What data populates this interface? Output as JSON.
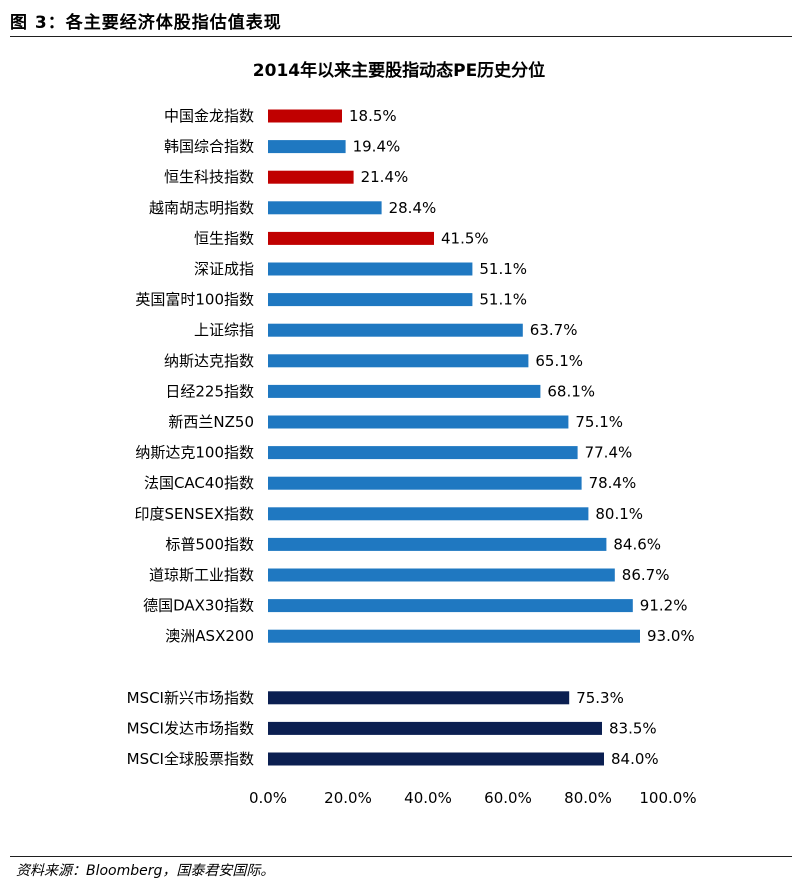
{
  "figure": {
    "title": "图 3：各主要经济体股指估值表现",
    "source": "资料来源：Bloomberg，国泰君安国际。"
  },
  "colors": {
    "red": "#C00000",
    "blue": "#1F78C1",
    "navy": "#0B1F51"
  },
  "chart_data": {
    "type": "bar",
    "orientation": "horizontal",
    "title": "2014年以来主要股指动态PE历史分位",
    "xlim": [
      0,
      100
    ],
    "xticks": [
      "0.0%",
      "20.0%",
      "40.0%",
      "60.0%",
      "80.0%",
      "100.0%"
    ],
    "grid": false,
    "categories": [
      "中国金龙指数",
      "韩国综合指数",
      "恒生科技指数",
      "越南胡志明指数",
      "恒生指数",
      "深证成指",
      "英国富时100指数",
      "上证综指",
      "纳斯达克指数",
      "日经225指数",
      "新西兰NZ50",
      "纳斯达克100指数",
      "法国CAC40指数",
      "印度SENSEX指数",
      "标普500指数",
      "道琼斯工业指数",
      "德国DAX30指数",
      "澳洲ASX200",
      "MSCI新兴市场指数",
      "MSCI发达市场指数",
      "MSCI全球股票指数"
    ],
    "values": [
      18.5,
      19.4,
      21.4,
      28.4,
      41.5,
      51.1,
      51.1,
      63.7,
      65.1,
      68.1,
      75.1,
      77.4,
      78.4,
      80.1,
      84.6,
      86.7,
      91.2,
      93.0,
      75.3,
      83.5,
      84.0
    ],
    "value_labels": [
      "18.5%",
      "19.4%",
      "21.4%",
      "28.4%",
      "41.5%",
      "51.1%",
      "51.1%",
      "63.7%",
      "65.1%",
      "68.1%",
      "75.1%",
      "77.4%",
      "78.4%",
      "80.1%",
      "84.6%",
      "86.7%",
      "91.2%",
      "93.0%",
      "75.3%",
      "83.5%",
      "84.0%"
    ],
    "bar_colors": [
      "red",
      "blue",
      "red",
      "blue",
      "red",
      "blue",
      "blue",
      "blue",
      "blue",
      "blue",
      "blue",
      "blue",
      "blue",
      "blue",
      "blue",
      "blue",
      "blue",
      "blue",
      "navy",
      "navy",
      "navy"
    ]
  }
}
